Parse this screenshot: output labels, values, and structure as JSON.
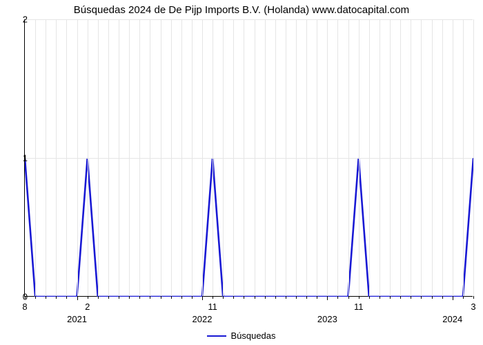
{
  "chart": {
    "type": "line",
    "title": "Búsquedas 2024 de De Pijp Imports B.V. (Holanda) www.datocapital.com",
    "title_fontsize": 15,
    "title_color": "#000000",
    "background_color": "#ffffff",
    "grid_color": "#e5e5e5",
    "axis_color": "#000000",
    "tick_font_size": 13,
    "series": {
      "name": "Búsquedas",
      "color": "#1919d4",
      "line_width": 2.6,
      "x": [
        0,
        1,
        2,
        5,
        6,
        7,
        17,
        18,
        19,
        31,
        32,
        33,
        42,
        43
      ],
      "y": [
        1,
        0,
        0,
        0,
        1,
        0,
        0,
        1,
        0,
        0,
        1,
        0,
        0,
        1
      ]
    },
    "y_axis": {
      "min": 0,
      "max": 2,
      "ticks": [
        0,
        1,
        2
      ],
      "tick_labels": [
        "0",
        "1",
        "2"
      ]
    },
    "x_axis": {
      "domain_min": 0,
      "domain_max": 43,
      "value_labels": [
        {
          "x": 0,
          "text": "8"
        },
        {
          "x": 6,
          "text": "2"
        },
        {
          "x": 18,
          "text": "11"
        },
        {
          "x": 32,
          "text": "11"
        },
        {
          "x": 43,
          "text": "3"
        }
      ],
      "year_labels": [
        {
          "x": 5,
          "text": "2021"
        },
        {
          "x": 17,
          "text": "2022"
        },
        {
          "x": 29,
          "text": "2023"
        },
        {
          "x": 41,
          "text": "2024"
        }
      ],
      "minor_tick_step": 1,
      "major_ticks": [
        5,
        17,
        29,
        41
      ]
    },
    "legend": {
      "label": "Búsquedas"
    }
  }
}
